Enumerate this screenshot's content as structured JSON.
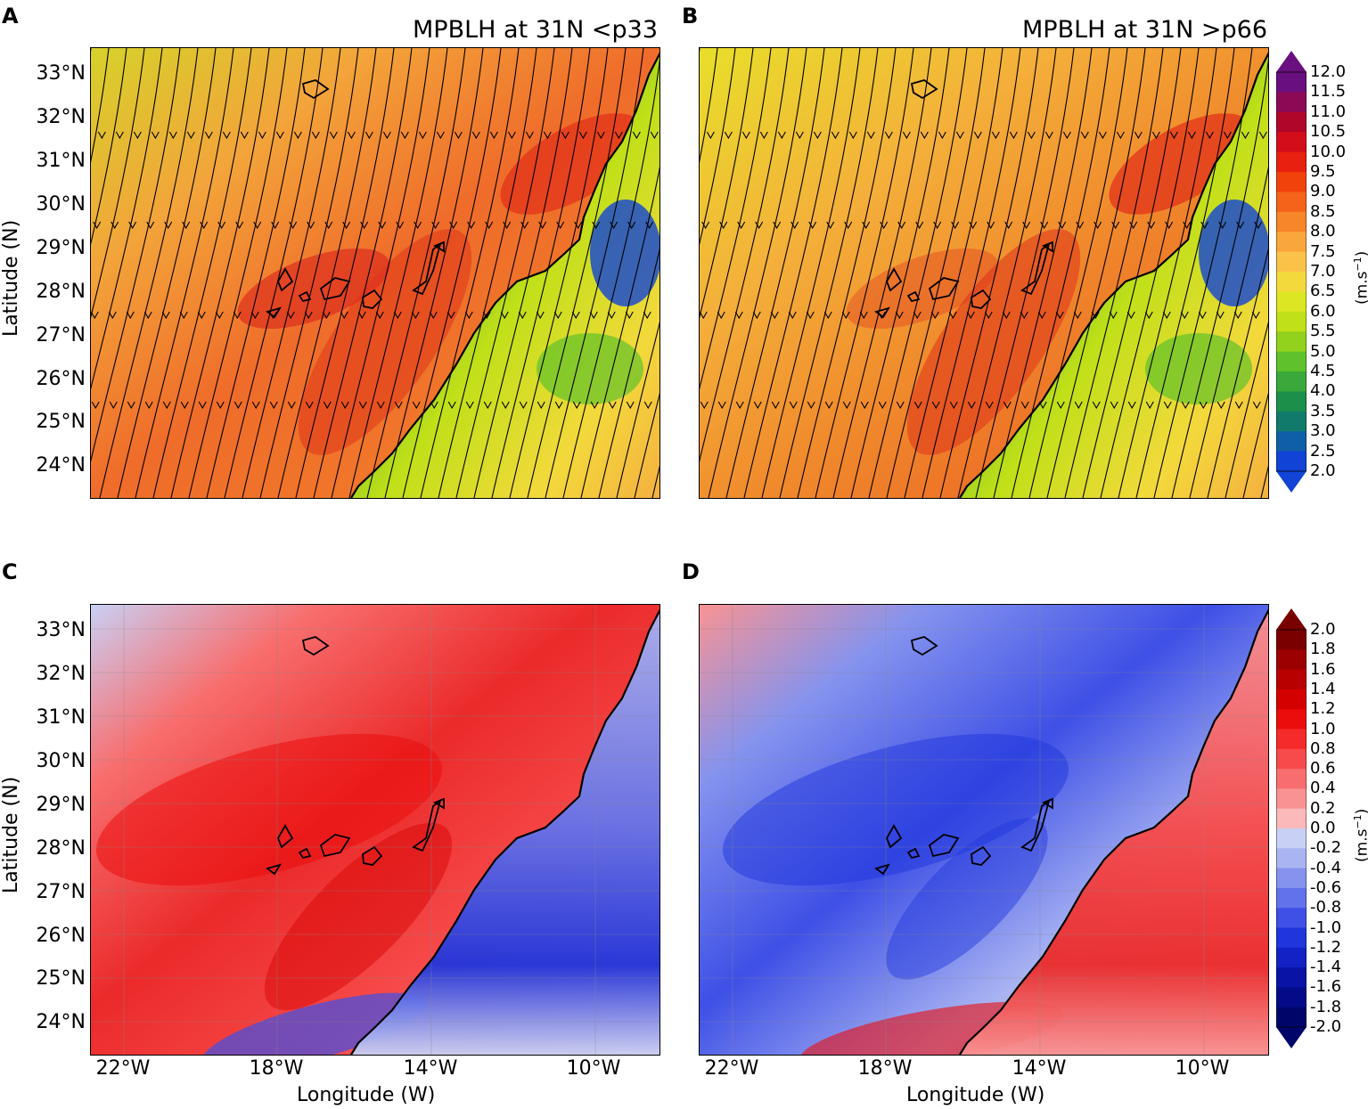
{
  "panels": [
    {
      "letter": "A",
      "title": "MPBLH at 31N <p33"
    },
    {
      "letter": "B",
      "title": "MPBLH at 31N >p66"
    },
    {
      "letter": "C",
      "title": ""
    },
    {
      "letter": "D",
      "title": ""
    }
  ],
  "axes": {
    "ylabel": "Latitude (N)",
    "xlabel": "Longitude (W)",
    "lat_ticks": [
      "33°N",
      "32°N",
      "31°N",
      "30°N",
      "29°N",
      "28°N",
      "27°N",
      "26°N",
      "25°N",
      "24°N"
    ],
    "lon_ticks": [
      "22°W",
      "18°W",
      "14°W",
      "10°W"
    ]
  },
  "colorbar_top": {
    "unit": "(m.s",
    "unit_sup": "−1",
    "unit_close": ")",
    "ticks": [
      "12.0",
      "11.5",
      "11.0",
      "10.5",
      "10.0",
      "9.5",
      "9.0",
      "8.5",
      "8.0",
      "7.5",
      "7.0",
      "6.5",
      "6.0",
      "5.5",
      "5.0",
      "4.5",
      "4.0",
      "3.5",
      "3.0",
      "2.5",
      "2.0"
    ],
    "colors": [
      "#6a0f7f",
      "#8b0a56",
      "#b0062a",
      "#d40d1a",
      "#e8200f",
      "#f2420c",
      "#f5621a",
      "#f7852a",
      "#f9a63a",
      "#fbc24a",
      "#f3d93b",
      "#dde622",
      "#c0e018",
      "#93d21c",
      "#5fc22a",
      "#3aa83a",
      "#1c8f4b",
      "#127a6b",
      "#0f5fa6",
      "#1043d6"
    ]
  },
  "colorbar_bottom": {
    "unit": "(m.s",
    "unit_sup": "−1",
    "unit_close": ")",
    "ticks": [
      "2.0",
      "1.8",
      "1.6",
      "1.4",
      "1.2",
      "1.0",
      "0.8",
      "0.6",
      "0.4",
      "0.2",
      "0.0",
      "-0.2",
      "-0.4",
      "-0.6",
      "-0.8",
      "-1.0",
      "-1.2",
      "-1.4",
      "-1.6",
      "-1.8",
      "-2.0"
    ],
    "colors": [
      "#7a0000",
      "#9c0000",
      "#b80000",
      "#d40000",
      "#eb0c0c",
      "#f52a2a",
      "#f74a4a",
      "#f86e6e",
      "#f99393",
      "#fbb9b9",
      "#c9d0f5",
      "#a9b4f2",
      "#8593ee",
      "#6272ea",
      "#3e50e6",
      "#2035dc",
      "#1222c4",
      "#0914a6",
      "#040b88",
      "#00056a"
    ]
  }
}
